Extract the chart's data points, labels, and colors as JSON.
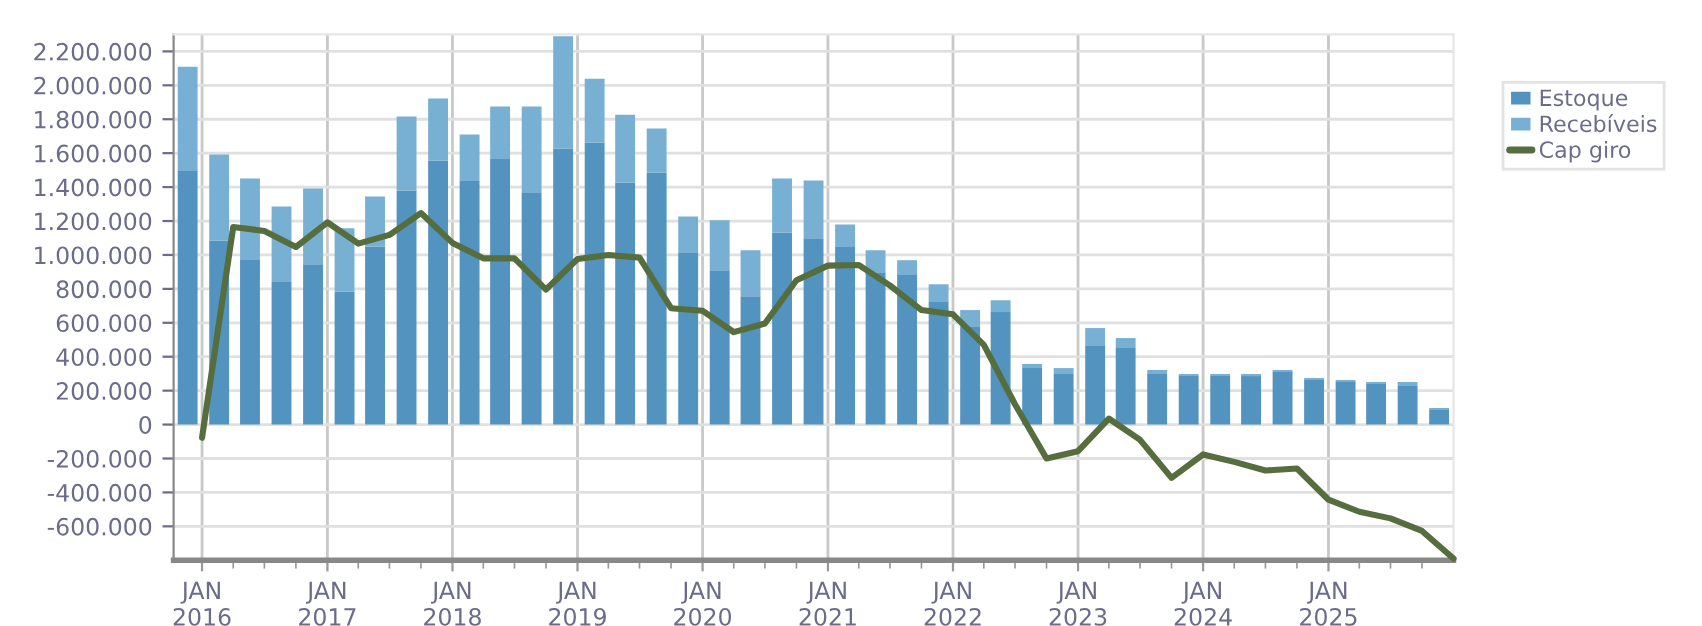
{
  "chart_data": {
    "type": "bar",
    "stacked": true,
    "x": [
      "2015-11-20",
      "2016-02-20",
      "2016-05-20",
      "2016-08-20",
      "2016-11-20",
      "2017-02-20",
      "2017-05-20",
      "2017-08-20",
      "2017-11-20",
      "2018-02-20",
      "2018-05-20",
      "2018-08-20",
      "2018-11-20",
      "2019-02-20",
      "2019-05-20",
      "2019-08-20",
      "2019-11-20",
      "2020-02-20",
      "2020-05-20",
      "2020-08-20",
      "2020-11-20",
      "2021-02-20",
      "2021-05-20",
      "2021-08-20",
      "2021-11-20",
      "2022-02-20",
      "2022-05-20",
      "2022-08-20",
      "2022-11-20",
      "2023-02-20",
      "2023-05-20",
      "2023-08-20",
      "2023-11-20",
      "2024-02-20",
      "2024-05-20",
      "2024-08-20",
      "2024-11-20",
      "2025-02-20",
      "2025-05-20",
      "2025-08-20",
      "2025-11-20"
    ],
    "series": [
      {
        "name": "Estoque",
        "color": "#5393c0",
        "values": [
          1500000,
          1085000,
          970000,
          840000,
          945000,
          785000,
          1050000,
          1380000,
          1557000,
          1440000,
          1570000,
          1370000,
          1627000,
          1663000,
          1427000,
          1486000,
          1016000,
          910000,
          757000,
          1133000,
          1098000,
          1051000,
          898000,
          886000,
          722000,
          580000,
          663000,
          333000,
          298000,
          463000,
          451000,
          298000,
          286000,
          286000,
          286000,
          310000,
          263000,
          251000,
          239000,
          227000,
          86000
        ]
      },
      {
        "name": "Recebíveis",
        "color": "#77b0d3",
        "values": [
          610000,
          507000,
          481000,
          446000,
          447000,
          372000,
          295000,
          436000,
          365000,
          270000,
          305000,
          505000,
          663000,
          376000,
          400000,
          259000,
          211000,
          294000,
          270000,
          318000,
          341000,
          129000,
          129000,
          83000,
          105000,
          95000,
          70000,
          24000,
          35000,
          106000,
          59000,
          24000,
          12000,
          12000,
          12000,
          12000,
          12000,
          12000,
          12000,
          24000,
          12000
        ]
      },
      {
        "name": "Cap giro",
        "type": "line",
        "color": "#566e3d",
        "x": [
          "2016-01",
          "2016-04",
          "2016-07",
          "2016-10",
          "2017-01",
          "2017-04",
          "2017-07",
          "2017-10",
          "2018-01",
          "2018-04",
          "2018-07",
          "2018-10",
          "2019-01",
          "2019-04",
          "2019-07",
          "2019-10",
          "2020-01",
          "2020-04",
          "2020-07",
          "2020-10",
          "2021-01",
          "2021-04",
          "2021-07",
          "2021-10",
          "2022-01",
          "2022-04",
          "2022-07",
          "2022-10",
          "2023-01",
          "2023-04",
          "2023-07",
          "2023-10",
          "2024-01",
          "2024-04",
          "2024-07",
          "2024-10",
          "2025-01",
          "2025-04",
          "2025-07",
          "2025-10",
          "2026-01"
        ],
        "values": [
          -78000,
          1165000,
          1141000,
          1047000,
          1192000,
          1067000,
          1118000,
          1247000,
          1071000,
          980000,
          980000,
          796000,
          976000,
          1000000,
          984000,
          686000,
          671000,
          545000,
          596000,
          851000,
          937000,
          941000,
          820000,
          675000,
          650000,
          470000,
          120000,
          -200000,
          -157000,
          35000,
          -90000,
          -314000,
          -176000,
          -220000,
          -271000,
          -259000,
          -443000,
          -514000,
          -553000,
          -627000,
          -790000
        ]
      }
    ],
    "xlim": [
      "2015-10-10",
      "2026-01-01"
    ],
    "xticks": [
      {
        "value": "2016-01",
        "label": "JAN\n2016"
      },
      {
        "value": "2016-04",
        "label": null
      },
      {
        "value": "2016-07",
        "label": null
      },
      {
        "value": "2016-10",
        "label": null
      },
      {
        "value": "2017-01",
        "label": "JAN\n2017"
      },
      {
        "value": "2017-04",
        "label": null
      },
      {
        "value": "2017-07",
        "label": null
      },
      {
        "value": "2017-10",
        "label": null
      },
      {
        "value": "2018-01",
        "label": "JAN\n2018"
      },
      {
        "value": "2018-04",
        "label": null
      },
      {
        "value": "2018-07",
        "label": null
      },
      {
        "value": "2018-10",
        "label": null
      },
      {
        "value": "2019-01",
        "label": "JAN\n2019"
      },
      {
        "value": "2019-04",
        "label": null
      },
      {
        "value": "2019-07",
        "label": null
      },
      {
        "value": "2019-10",
        "label": null
      },
      {
        "value": "2020-01",
        "label": "JAN\n2020"
      },
      {
        "value": "2020-04",
        "label": null
      },
      {
        "value": "2020-07",
        "label": null
      },
      {
        "value": "2020-10",
        "label": null
      },
      {
        "value": "2021-01",
        "label": "JAN\n2021"
      },
      {
        "value": "2021-04",
        "label": null
      },
      {
        "value": "2021-07",
        "label": null
      },
      {
        "value": "2021-10",
        "label": null
      },
      {
        "value": "2022-01",
        "label": "JAN\n2022"
      },
      {
        "value": "2022-04",
        "label": null
      },
      {
        "value": "2022-07",
        "label": null
      },
      {
        "value": "2022-10",
        "label": null
      },
      {
        "value": "2023-01",
        "label": "JAN\n2023"
      },
      {
        "value": "2023-04",
        "label": null
      },
      {
        "value": "2023-07",
        "label": null
      },
      {
        "value": "2023-10",
        "label": null
      },
      {
        "value": "2024-01",
        "label": "JAN\n2024"
      },
      {
        "value": "2024-04",
        "label": null
      },
      {
        "value": "2024-07",
        "label": null
      },
      {
        "value": "2024-10",
        "label": null
      },
      {
        "value": "2025-01",
        "label": "JAN\n2025"
      },
      {
        "value": "2025-04",
        "label": null
      },
      {
        "value": "2025-07",
        "label": null
      },
      {
        "value": "2025-10",
        "label": null
      }
    ],
    "ylim": [
      -800000,
      2300000
    ],
    "yticks": [
      {
        "value": -600000,
        "label": "-600.000"
      },
      {
        "value": -400000,
        "label": "-400.000"
      },
      {
        "value": -200000,
        "label": "-200.000"
      },
      0,
      {
        "value": 200000,
        "label": "200.000"
      },
      {
        "value": 400000,
        "label": "400.000"
      },
      {
        "value": 600000,
        "label": "600.000"
      },
      {
        "value": 800000,
        "label": "800.000"
      },
      {
        "value": 1000000,
        "label": "1.000.000"
      },
      {
        "value": 1200000,
        "label": "1.200.000"
      },
      {
        "value": 1400000,
        "label": "1.400.000"
      },
      {
        "value": 1600000,
        "label": "1.600.000"
      },
      {
        "value": 1800000,
        "label": "1.800.000"
      },
      {
        "value": 2000000,
        "label": "2.000.000"
      },
      {
        "value": 2200000,
        "label": "2.200.000"
      }
    ],
    "grid": true,
    "legend": "top right"
  }
}
